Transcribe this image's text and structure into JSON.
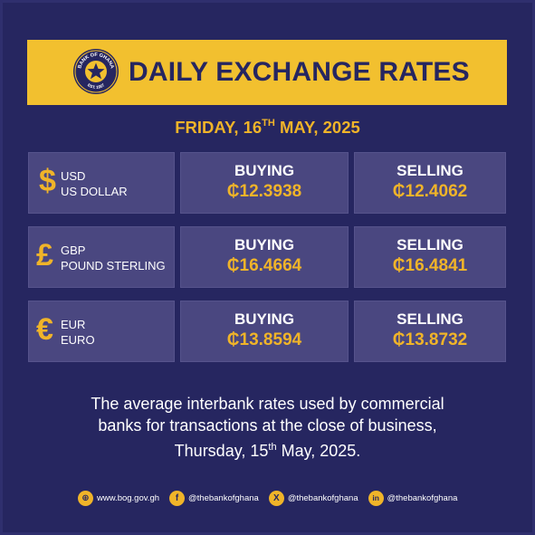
{
  "header": {
    "title": "DAILY EXCHANGE RATES",
    "seal_top_text": "BANK OF GHANA",
    "seal_bottom_text": "EST. 1957"
  },
  "date": {
    "prefix": "FRIDAY, 16",
    "ordinal": "TH",
    "suffix": " MAY, 2025"
  },
  "rates": [
    {
      "symbol": "$",
      "code": "USD",
      "name": "US DOLLAR",
      "buying_label": "BUYING",
      "buying": "₵12.3938",
      "selling_label": "SELLING",
      "selling": "₵12.4062"
    },
    {
      "symbol": "£",
      "code": "GBP",
      "name": "POUND STERLING",
      "buying_label": "BUYING",
      "buying": "₵16.4664",
      "selling_label": "SELLING",
      "selling": "₵16.4841"
    },
    {
      "symbol": "€",
      "code": "EUR",
      "name": "EURO",
      "buying_label": "BUYING",
      "buying": "₵13.8594",
      "selling_label": "SELLING",
      "selling": "₵13.8732"
    }
  ],
  "note": {
    "line1": "The average interbank rates used by commercial",
    "line2": "banks for transactions at the close of business,",
    "line3_prefix": "Thursday, 15",
    "line3_ordinal": "th",
    "line3_suffix": " May, 2025."
  },
  "footer": [
    {
      "icon": "globe-icon",
      "glyph": "⊕",
      "text": "www.bog.gov.gh"
    },
    {
      "icon": "facebook-icon",
      "glyph": "f",
      "text": "@thebankofghana"
    },
    {
      "icon": "x-icon",
      "glyph": "X",
      "text": "@thebankofghana"
    },
    {
      "icon": "linkedin-icon",
      "glyph": "in",
      "text": "@thebankofghana"
    }
  ],
  "colors": {
    "background": "#262660",
    "banner": "#f2c02f",
    "accent": "#f0b429",
    "cell": "#4a4780"
  }
}
